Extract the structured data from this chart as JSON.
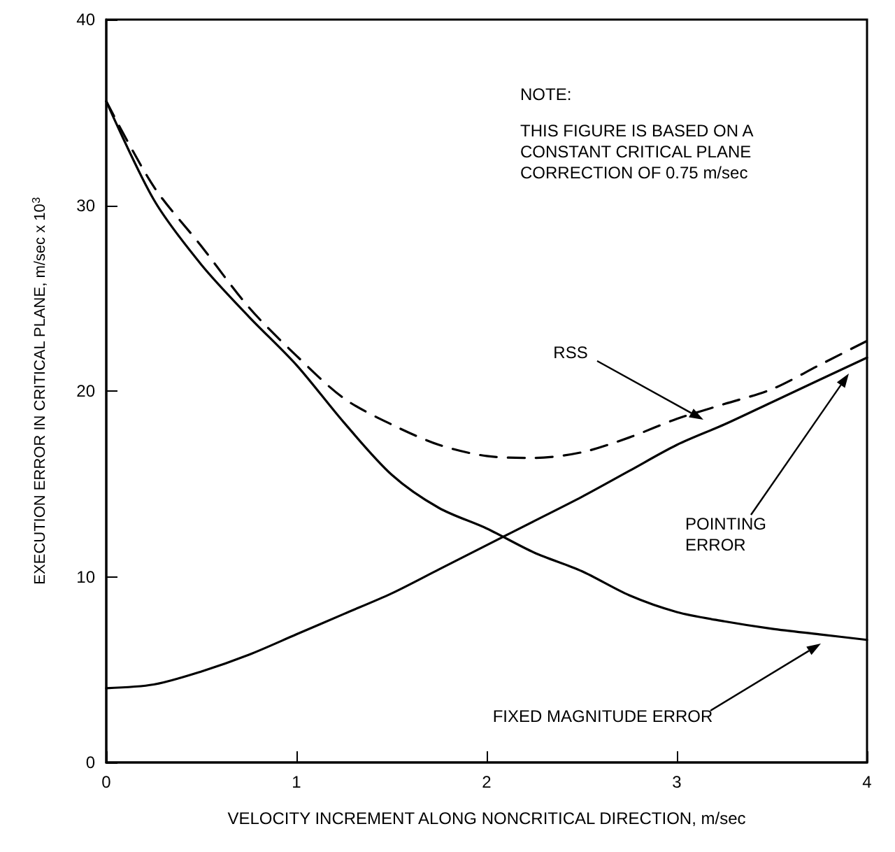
{
  "chart_data": {
    "type": "line",
    "xlabel": "VELOCITY INCREMENT ALONG NONCRITICAL DIRECTION, m/sec",
    "ylabel": "EXECUTION ERROR IN CRITICAL PLANE, m/sec x 10$^{3}$",
    "x": [
      0,
      0.25,
      0.5,
      0.75,
      1,
      1.25,
      1.5,
      1.75,
      2,
      2.25,
      2.5,
      2.75,
      3,
      3.25,
      3.5,
      3.75,
      4
    ],
    "series": [
      {
        "color": "#000000",
        "line_style": "dashed",
        "values": [
          35.6,
          31.0,
          27.8,
          24.5,
          21.9,
          19.6,
          18.2,
          17.1,
          16.5,
          16.4,
          16.7,
          17.5,
          18.5,
          19.3,
          20.1,
          21.4,
          22.7
        ]
      },
      {
        "color": "#000000",
        "line_style": "solid",
        "values": [
          4.0,
          4.2,
          4.9,
          5.8,
          6.9,
          8.0,
          9.1,
          10.4,
          11.7,
          13.0,
          14.3,
          15.7,
          17.1,
          18.2,
          19.4,
          20.6,
          21.8
        ]
      },
      {
        "color": "#000000",
        "line_style": "solid",
        "values": [
          35.6,
          30.3,
          26.8,
          24.0,
          21.4,
          18.3,
          15.5,
          13.7,
          12.6,
          11.3,
          10.3,
          9.0,
          8.1,
          7.6,
          7.2,
          6.9,
          6.6
        ]
      }
    ],
    "annotations": [
      "NOTE:",
      "THIS FIGURE IS BASED ON A CONSTANT CRITICAL PLANE CORRECTION OF 0.75 m/sec",
      "RSS",
      "POINTING\nERROR",
      "FIXED MAGNITUDE ERROR"
    ],
    "xlim": [
      0,
      4
    ],
    "xticks": [
      0,
      1,
      2,
      3,
      4
    ],
    "ylim": [
      0,
      40
    ],
    "yticks": [
      0,
      10,
      20,
      30,
      40
    ],
    "grid": false,
    "marker": "none"
  }
}
